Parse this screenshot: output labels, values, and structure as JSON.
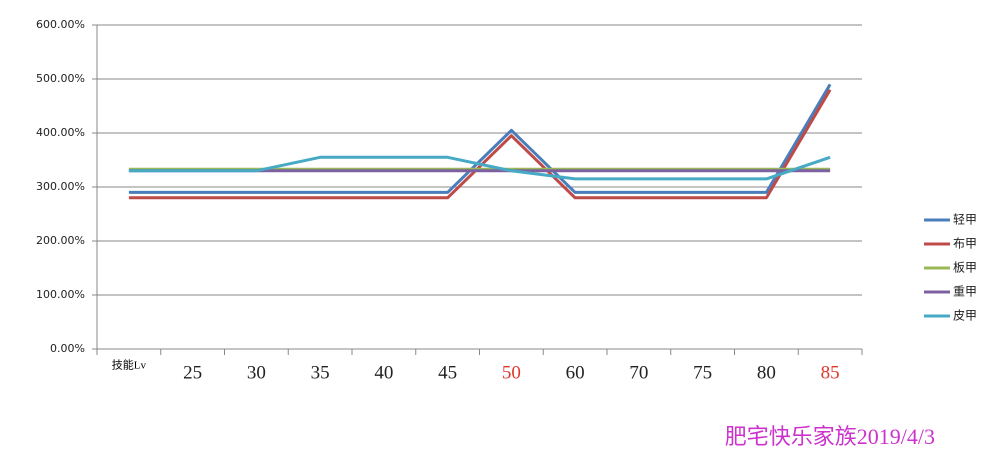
{
  "chart_data": {
    "type": "line",
    "annotation": "肥宅快乐家族2019/4/3",
    "categories": [
      "技能Lv",
      "25",
      "30",
      "35",
      "40",
      "45",
      "50",
      "60",
      "70",
      "75",
      "80",
      "85"
    ],
    "category_colors": [
      "#000000",
      "#222222",
      "#222222",
      "#222222",
      "#222222",
      "#222222",
      "#e0362c",
      "#222222",
      "#222222",
      "#222222",
      "#222222",
      "#e0362c"
    ],
    "series": [
      {
        "name": "轻甲",
        "color": "#4a7ebb",
        "values": [
          290,
          290,
          290,
          290,
          290,
          290,
          405,
          290,
          290,
          290,
          290,
          490
        ]
      },
      {
        "name": "布甲",
        "color": "#be4b48",
        "values": [
          280,
          280,
          280,
          280,
          280,
          280,
          395,
          280,
          280,
          280,
          280,
          480
        ]
      },
      {
        "name": "板甲",
        "color": "#98b954",
        "values": [
          333,
          333,
          333,
          333,
          333,
          333,
          333,
          333,
          333,
          333,
          333,
          333
        ]
      },
      {
        "name": "重甲",
        "color": "#7d60a0",
        "values": [
          330,
          330,
          330,
          330,
          330,
          330,
          330,
          330,
          330,
          330,
          330,
          330
        ]
      },
      {
        "name": "皮甲",
        "color": "#46aac5",
        "values": [
          330,
          330,
          330,
          355,
          355,
          355,
          330,
          315,
          315,
          315,
          315,
          355
        ]
      }
    ],
    "ylim": [
      0,
      600
    ],
    "yticks": [
      {
        "value": 0,
        "label": "0.00%"
      },
      {
        "value": 100,
        "label": "100.00%"
      },
      {
        "value": 200,
        "label": "200.00%"
      },
      {
        "value": 300,
        "label": "300.00%"
      },
      {
        "value": 400,
        "label": "400.00%"
      },
      {
        "value": 500,
        "label": "500.00%"
      },
      {
        "value": 600,
        "label": "600.00%"
      }
    ],
    "grid": true,
    "legend": "right"
  }
}
